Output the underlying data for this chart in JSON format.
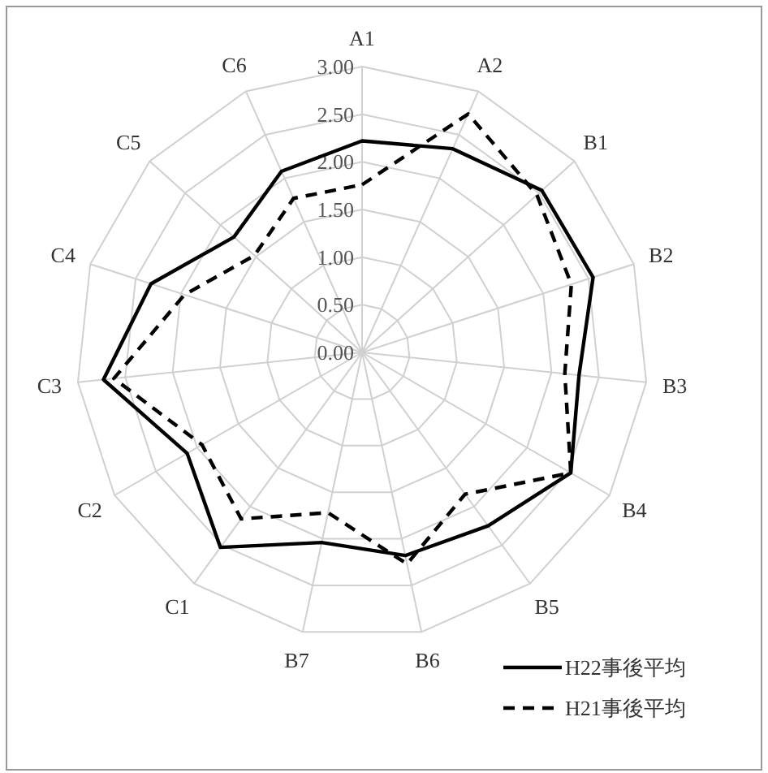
{
  "chart_data": {
    "type": "radar",
    "categories": [
      "A1",
      "A2",
      "B1",
      "B2",
      "B3",
      "B4",
      "B5",
      "B6",
      "B7",
      "C1",
      "C2",
      "C3",
      "C4",
      "C5",
      "C6"
    ],
    "ylim": [
      0,
      3
    ],
    "yticks": [
      {
        "value": 0,
        "label": "0.00"
      },
      {
        "value": 0.5,
        "label": "0.50"
      },
      {
        "value": 1,
        "label": "1.00"
      },
      {
        "value": 1.5,
        "label": "1.50"
      },
      {
        "value": 2,
        "label": "2.00"
      },
      {
        "value": 2.5,
        "label": "2.50"
      },
      {
        "value": 3,
        "label": "3.00"
      }
    ],
    "grid": true,
    "legend": "bottom right",
    "marker": "none",
    "series": [
      {
        "name": "H22事後平均",
        "color": "#000000",
        "line_style": "solid",
        "values": [
          2.22,
          2.34,
          2.54,
          2.55,
          2.29,
          2.53,
          2.25,
          2.18,
          2.04,
          2.53,
          2.12,
          2.73,
          2.33,
          1.81,
          2.08
        ]
      },
      {
        "name": "H21事後平均",
        "color": "#000000",
        "line_style": "dashed",
        "values": [
          1.76,
          2.74,
          2.47,
          2.31,
          2.14,
          2.53,
          1.84,
          2.27,
          1.72,
          2.16,
          1.94,
          2.62,
          1.96,
          1.52,
          1.77
        ]
      }
    ]
  }
}
